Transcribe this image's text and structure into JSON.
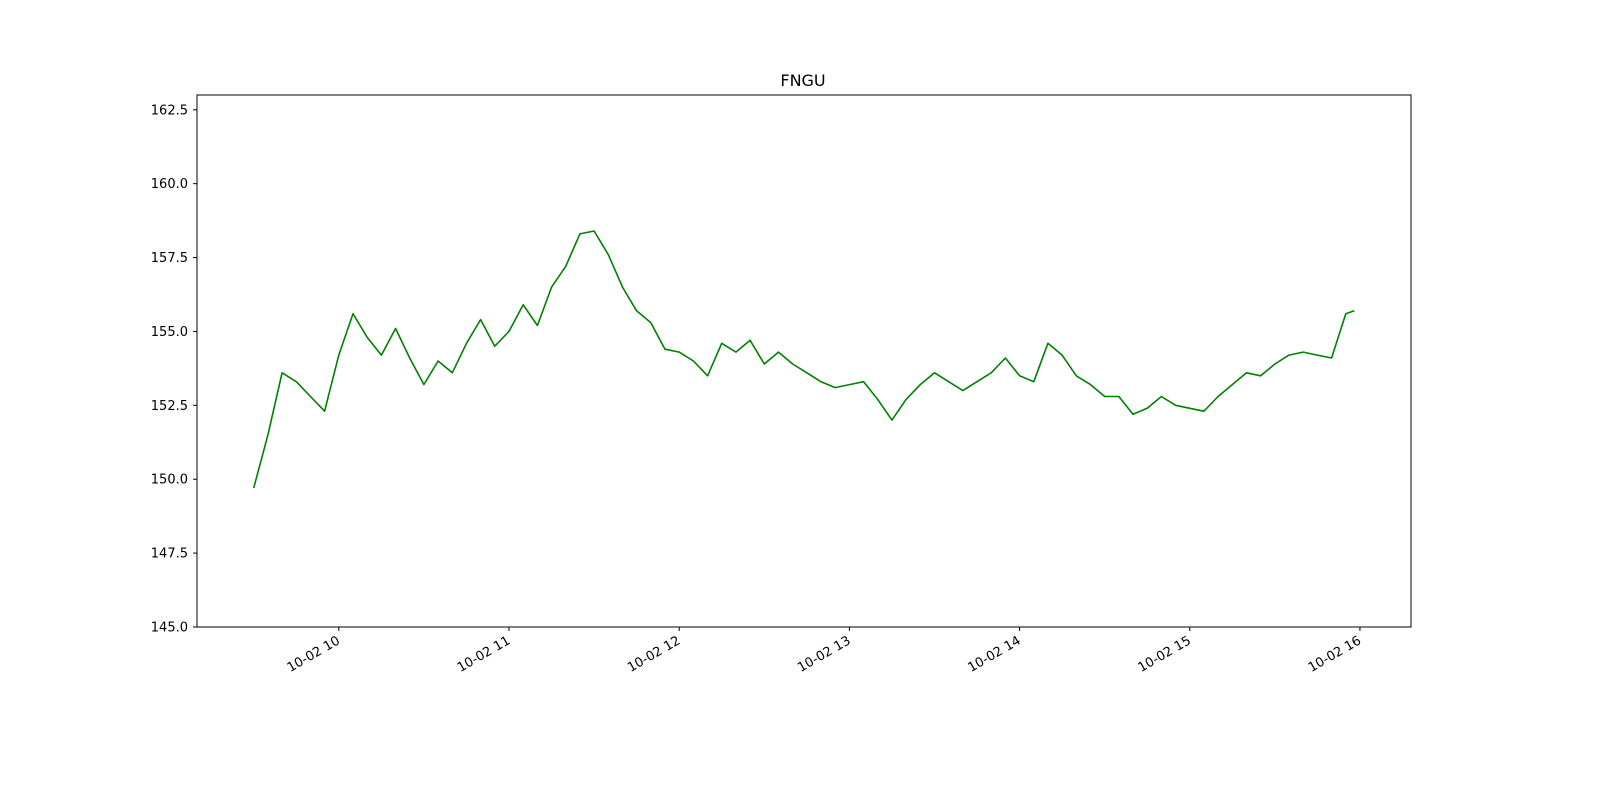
{
  "chart_data": {
    "type": "line",
    "title": "FNGU",
    "xlabel": "",
    "ylabel": "",
    "x_ticks": [
      "10-02 10",
      "10-02 11",
      "10-02 12",
      "10-02 13",
      "10-02 14",
      "10-02 15",
      "10-02 16"
    ],
    "y_ticks": [
      "145.0",
      "147.5",
      "150.0",
      "152.5",
      "155.0",
      "157.5",
      "160.0",
      "162.5"
    ],
    "ylim": [
      145.0,
      163.0
    ],
    "xlim": [
      "2024-10-02 09:10",
      "2024-10-02 16:18"
    ],
    "grid": false,
    "colors": {
      "line": "#008000"
    },
    "series": [
      {
        "x": [
          "2024-10-02 09:30",
          "2024-10-02 09:35",
          "2024-10-02 09:40",
          "2024-10-02 09:45",
          "2024-10-02 09:50",
          "2024-10-02 09:55",
          "2024-10-02 10:00",
          "2024-10-02 10:05",
          "2024-10-02 10:10",
          "2024-10-02 10:15",
          "2024-10-02 10:20",
          "2024-10-02 10:25",
          "2024-10-02 10:30",
          "2024-10-02 10:35",
          "2024-10-02 10:40",
          "2024-10-02 10:45",
          "2024-10-02 10:50",
          "2024-10-02 10:55",
          "2024-10-02 11:00",
          "2024-10-02 11:05",
          "2024-10-02 11:10",
          "2024-10-02 11:15",
          "2024-10-02 11:20",
          "2024-10-02 11:25",
          "2024-10-02 11:30",
          "2024-10-02 11:35",
          "2024-10-02 11:40",
          "2024-10-02 11:45",
          "2024-10-02 11:50",
          "2024-10-02 11:55",
          "2024-10-02 12:00",
          "2024-10-02 12:05",
          "2024-10-02 12:10",
          "2024-10-02 12:15",
          "2024-10-02 12:20",
          "2024-10-02 12:25",
          "2024-10-02 12:30",
          "2024-10-02 12:35",
          "2024-10-02 12:40",
          "2024-10-02 12:45",
          "2024-10-02 12:50",
          "2024-10-02 12:55",
          "2024-10-02 13:00",
          "2024-10-02 13:05",
          "2024-10-02 13:10",
          "2024-10-02 13:15",
          "2024-10-02 13:20",
          "2024-10-02 13:25",
          "2024-10-02 13:30",
          "2024-10-02 13:35",
          "2024-10-02 13:40",
          "2024-10-02 13:45",
          "2024-10-02 13:50",
          "2024-10-02 13:55",
          "2024-10-02 14:00",
          "2024-10-02 14:05",
          "2024-10-02 14:10",
          "2024-10-02 14:15",
          "2024-10-02 14:20",
          "2024-10-02 14:25",
          "2024-10-02 14:30",
          "2024-10-02 14:35",
          "2024-10-02 14:40",
          "2024-10-02 14:45",
          "2024-10-02 14:50",
          "2024-10-02 14:55",
          "2024-10-02 15:00",
          "2024-10-02 15:05",
          "2024-10-02 15:10",
          "2024-10-02 15:15",
          "2024-10-02 15:20",
          "2024-10-02 15:25",
          "2024-10-02 15:30",
          "2024-10-02 15:35",
          "2024-10-02 15:40",
          "2024-10-02 15:45",
          "2024-10-02 15:50",
          "2024-10-02 15:55",
          "2024-10-02 15:58"
        ],
        "values": [
          149.7,
          151.5,
          153.6,
          153.3,
          152.8,
          152.3,
          154.2,
          155.6,
          154.8,
          154.2,
          155.1,
          154.1,
          153.2,
          154.0,
          153.6,
          154.6,
          155.4,
          154.5,
          155.0,
          155.9,
          155.2,
          156.5,
          157.2,
          158.3,
          158.4,
          157.6,
          156.5,
          155.7,
          155.3,
          154.4,
          154.3,
          154.0,
          153.5,
          154.6,
          154.3,
          154.7,
          153.9,
          154.3,
          153.9,
          153.6,
          153.3,
          153.1,
          153.2,
          153.3,
          152.7,
          152.0,
          152.7,
          153.2,
          153.6,
          153.3,
          153.0,
          153.3,
          153.6,
          154.1,
          153.5,
          153.3,
          154.6,
          154.2,
          153.5,
          153.2,
          152.8,
          152.8,
          152.2,
          152.4,
          152.8,
          152.5,
          152.4,
          152.3,
          152.8,
          153.2,
          153.6,
          153.5,
          153.9,
          154.2,
          154.3,
          154.2,
          154.1,
          155.6,
          155.7
        ]
      }
    ]
  }
}
